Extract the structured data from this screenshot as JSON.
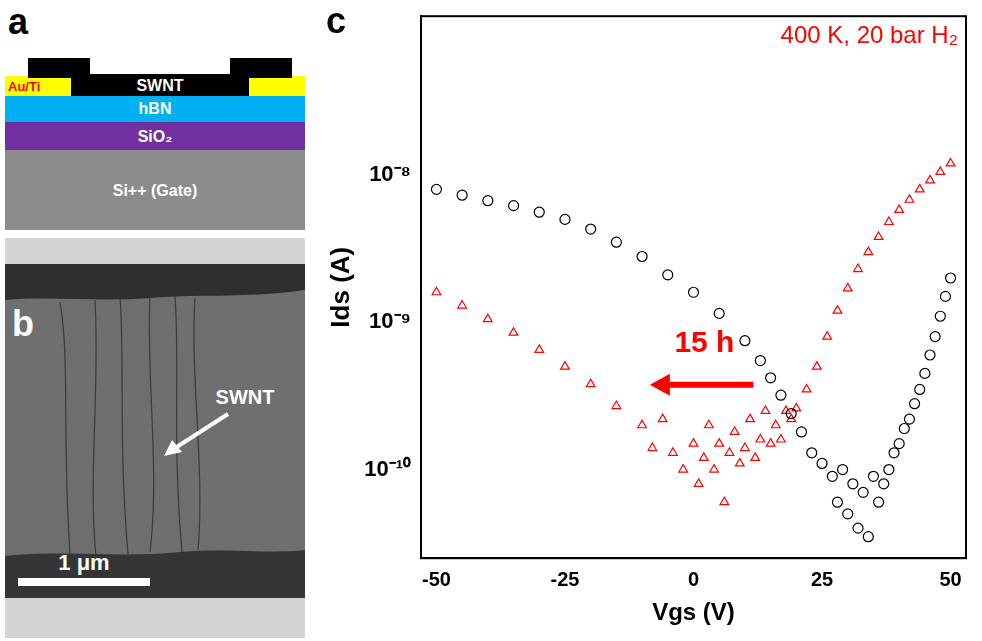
{
  "panel_a": {
    "letter": "a",
    "layers": {
      "electrode": "Au/Ti",
      "channel": "SWNT",
      "dielectric": "hBN",
      "oxide": "SiO₂",
      "substrate": "Si++ (Gate)"
    }
  },
  "panel_b": {
    "letter": "b",
    "label": "SWNT",
    "scale_bar": "1 μm"
  },
  "chart_data": {
    "letter": "c",
    "type": "scatter",
    "x_label": "Vgs (V)",
    "y_label": "Ids (A)",
    "annotations": [
      "400 K, 20 bar H₂",
      "15 h"
    ],
    "xlim": [
      -53,
      53
    ],
    "xticks": [
      -50,
      -25,
      0,
      25,
      50
    ],
    "ylim": [
      2.5e-11,
      1.2e-07
    ],
    "yticks": [
      {
        "value": 1e-10,
        "label": "10⁻¹⁰"
      },
      {
        "value": 1e-09,
        "label": "10⁻⁹"
      },
      {
        "value": 1e-08,
        "label": "10⁻⁸"
      }
    ],
    "log": "y",
    "grid": false,
    "series": [
      {
        "color": "#000000",
        "marker": "circle",
        "x": [
          -50,
          -45,
          -40,
          -35,
          -30,
          -25,
          -20,
          -15,
          -10,
          -5,
          0,
          5,
          10,
          13,
          15,
          17,
          19,
          21,
          23,
          25,
          27,
          28,
          29,
          30,
          31,
          32,
          33,
          34,
          35,
          36,
          37,
          38,
          39,
          40,
          41,
          42,
          43,
          44,
          45,
          46,
          47,
          48,
          49,
          50
        ],
        "values": [
          8e-09,
          7.3e-09,
          6.7e-09,
          6.2e-09,
          5.6e-09,
          5e-09,
          4.3e-09,
          3.5e-09,
          2.8e-09,
          2.1e-09,
          1.6e-09,
          1.15e-09,
          7.5e-10,
          5.5e-10,
          4.2e-10,
          3.2e-10,
          2.4e-10,
          1.8e-10,
          1.3e-10,
          1.1e-10,
          9e-11,
          6e-11,
          1e-10,
          5e-11,
          8e-11,
          4e-11,
          7e-11,
          3.5e-11,
          9e-11,
          6e-11,
          8e-11,
          1e-10,
          1.3e-10,
          1.5e-10,
          1.9e-10,
          2.2e-10,
          2.8e-10,
          3.5e-10,
          4.5e-10,
          6e-10,
          8e-10,
          1.1e-09,
          1.5e-09,
          2e-09
        ]
      },
      {
        "color": "#ff0000",
        "marker": "triangle",
        "x": [
          -50,
          -45,
          -40,
          -35,
          -30,
          -25,
          -20,
          -15,
          -10,
          -8,
          -6,
          -4,
          -2,
          0,
          1,
          2,
          3,
          4,
          5,
          6,
          7,
          8,
          9,
          10,
          11,
          12,
          13,
          14,
          15,
          16,
          17,
          18,
          19,
          20,
          22,
          24,
          26,
          28,
          30,
          32,
          34,
          36,
          38,
          40,
          42,
          44,
          46,
          48,
          50
        ],
        "values": [
          1.6e-09,
          1.3e-09,
          1.05e-09,
          8.5e-10,
          6.5e-10,
          5e-10,
          3.8e-10,
          2.7e-10,
          2e-10,
          1.4e-10,
          2.2e-10,
          1.3e-10,
          1e-10,
          1.5e-10,
          8e-11,
          1.2e-10,
          2e-10,
          1e-10,
          1.5e-10,
          6e-11,
          1.3e-10,
          1.8e-10,
          1.1e-10,
          1.4e-10,
          2.2e-10,
          1.2e-10,
          1.6e-10,
          2.5e-10,
          1.5e-10,
          2e-10,
          1.6e-10,
          2.5e-10,
          2.2e-10,
          2.6e-10,
          3.5e-10,
          5e-10,
          8e-10,
          1.2e-09,
          1.7e-09,
          2.3e-09,
          3e-09,
          3.8e-09,
          4.8e-09,
          5.8e-09,
          6.8e-09,
          8e-09,
          9.2e-09,
          1.05e-08,
          1.2e-08
        ]
      }
    ]
  }
}
